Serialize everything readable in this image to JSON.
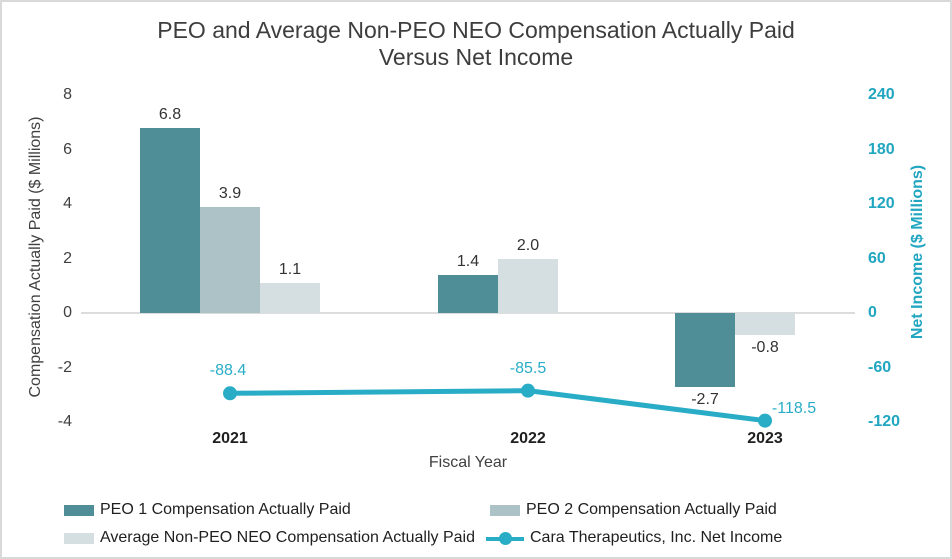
{
  "title": {
    "line1": "PEO and Average Non-PEO NEO Compensation Actually Paid",
    "line2": "Versus Net Income"
  },
  "chart_data": {
    "type": "combo-bar-line",
    "categories": [
      "2021",
      "2022",
      "2023"
    ],
    "bar_series": [
      {
        "name": "PEO 1 Compensation Actually Paid",
        "color": "#4f8d97",
        "values": [
          6.8,
          1.4,
          -2.7
        ]
      },
      {
        "name": "PEO 2 Compensation Actually Paid",
        "color": "#adc2c7",
        "values": [
          3.9,
          null,
          null
        ]
      },
      {
        "name": "Average Non-PEO NEO Compensation Actually Paid",
        "color": "#d5dfe1",
        "values": [
          1.1,
          2.0,
          -0.8
        ]
      }
    ],
    "line_series": {
      "name": "Cara Therapeutics, Inc. Net Income",
      "color": "#29adc6",
      "values": [
        -88.4,
        -85.5,
        -118.5
      ]
    },
    "left_axis": {
      "title": "Compensation Actually Paid ($ Millions)",
      "ticks": [
        8,
        6,
        4,
        2,
        0,
        -2,
        -4
      ],
      "range": [
        -4,
        8
      ]
    },
    "right_axis": {
      "title": "Net Income ($ Millions)",
      "ticks": [
        240,
        180,
        120,
        60,
        0,
        -60,
        -120
      ],
      "range": [
        -120,
        240
      ],
      "color": "#20a6c0"
    },
    "x_axis": {
      "title": "Fiscal Year",
      "labels": [
        "2021",
        "2022",
        "2023"
      ]
    },
    "legend_position": "bottom",
    "grid": "zero-line-only"
  }
}
